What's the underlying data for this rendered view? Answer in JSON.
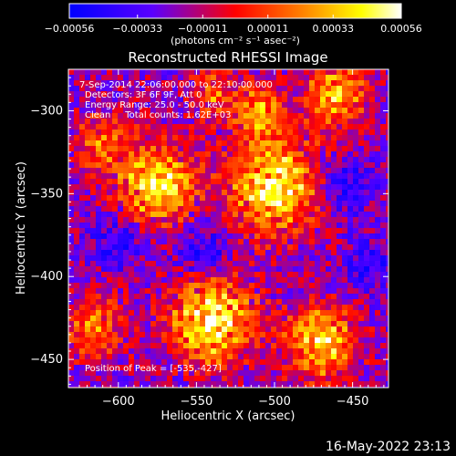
{
  "chart_data": {
    "type": "heatmap",
    "title": "Reconstructed RHESSI Image",
    "xlabel": "Heliocentric X (arcsec)",
    "ylabel": "Heliocentric Y (arcsec)",
    "xlim": [
      -632,
      -427
    ],
    "ylim": [
      -467,
      -275
    ],
    "x_ticks": [
      -600,
      -550,
      -500,
      -450
    ],
    "x_tick_labels": [
      "−600",
      "−550",
      "−500",
      "−450"
    ],
    "y_ticks": [
      -300,
      -350,
      -400,
      -450
    ],
    "y_tick_labels": [
      "−300",
      "−350",
      "−400",
      "−450"
    ],
    "colorbar": {
      "range": [
        -0.00056,
        0.00056
      ],
      "ticks": [
        -0.00056,
        -0.00033,
        -0.00011,
        0.00011,
        0.00033,
        0.00056
      ],
      "tick_labels": [
        "−0.00056",
        "−0.00033",
        "−0.00011",
        "0.00011",
        "0.00033",
        "0.00056"
      ],
      "units": "(photons cm⁻² s⁻¹ asec⁻²)",
      "colors": [
        "#0000ff",
        "#5a00ff",
        "#ff0000",
        "#ff8000",
        "#ffff00",
        "#ffffff"
      ]
    },
    "annotations": [
      "7-Sep-2014 22:06:00.000 to 22:10:00.000",
      "Detectors: 3F 6F 9F, Att 0",
      "Energy Range: 25.0 - 50.0 keV",
      "Clean     Total counts: 1.62E+03"
    ],
    "peak_label": "Position of Peak = [-535,-427]",
    "peak": [
      -535,
      -427
    ],
    "grid": false
  },
  "timestamp": "16-May-2022 23:13"
}
